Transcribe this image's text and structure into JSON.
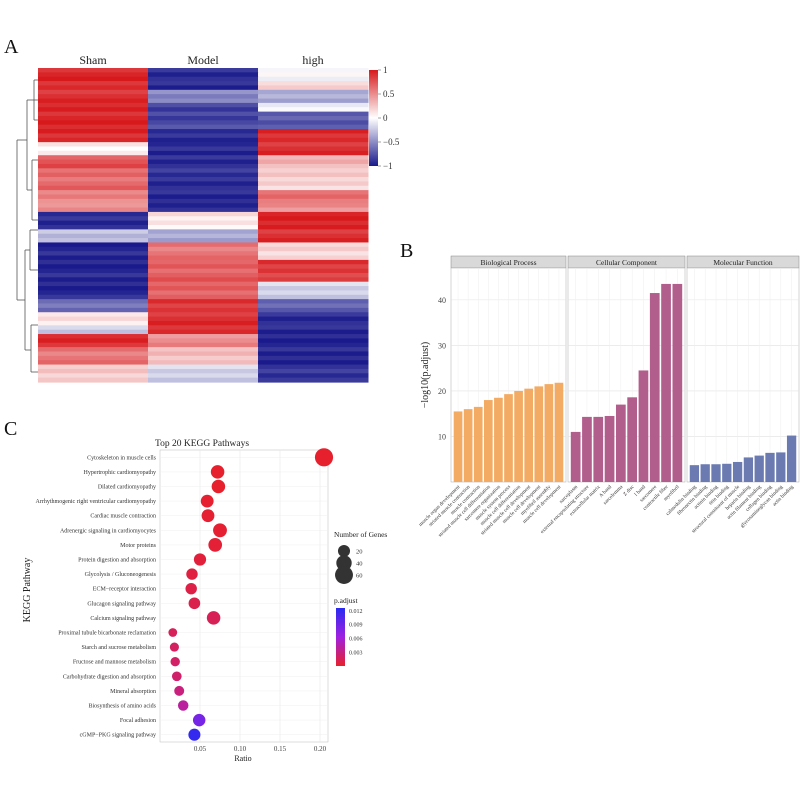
{
  "panels": {
    "a": "A",
    "b": "B",
    "c": "C"
  },
  "chart_data": [
    {
      "type": "heatmap",
      "panel": "A",
      "columns": [
        "Sham",
        "Model",
        "high"
      ],
      "colorbar": {
        "ticks": [
          1,
          0.5,
          0,
          -0.5,
          -1
        ],
        "labels": [
          "1",
          "0.5",
          "0",
          "−0.5",
          "−1"
        ],
        "colors": {
          "high": "#d7191c",
          "mid": "#ffffff",
          "low": "#1a1a8c"
        }
      },
      "row_blocks": [
        {
          "rows": 3,
          "values": [
            0.95,
            -0.9,
            0.0
          ]
        },
        {
          "rows": 2,
          "values": [
            0.9,
            -0.95,
            0.15
          ]
        },
        {
          "rows": 3,
          "values": [
            0.9,
            -0.5,
            -0.35
          ]
        },
        {
          "rows": 2,
          "values": [
            0.95,
            -0.85,
            -0.1
          ]
        },
        {
          "rows": 4,
          "values": [
            0.95,
            -0.8,
            -0.7
          ]
        },
        {
          "rows": 3,
          "values": [
            0.95,
            -0.9,
            0.9
          ]
        },
        {
          "rows": 3,
          "values": [
            0.05,
            -0.95,
            0.9
          ]
        },
        {
          "rows": 3,
          "values": [
            0.75,
            -0.9,
            0.35
          ]
        },
        {
          "rows": 5,
          "values": [
            0.65,
            -0.9,
            0.2
          ]
        },
        {
          "rows": 3,
          "values": [
            0.55,
            -0.95,
            0.6
          ]
        },
        {
          "rows": 2,
          "values": [
            0.45,
            -0.9,
            0.5
          ]
        },
        {
          "rows": 4,
          "values": [
            -0.9,
            0.1,
            0.95
          ]
        },
        {
          "rows": 3,
          "values": [
            -0.3,
            -0.4,
            0.9
          ]
        },
        {
          "rows": 4,
          "values": [
            -0.95,
            0.6,
            0.2
          ]
        },
        {
          "rows": 5,
          "values": [
            -0.95,
            0.7,
            0.85
          ]
        },
        {
          "rows": 4,
          "values": [
            -0.95,
            0.7,
            -0.2
          ]
        },
        {
          "rows": 3,
          "values": [
            -0.6,
            0.85,
            -0.7
          ]
        },
        {
          "rows": 3,
          "values": [
            0.1,
            0.9,
            -0.9
          ]
        },
        {
          "rows": 2,
          "values": [
            -0.2,
            0.9,
            -0.95
          ]
        },
        {
          "rows": 3,
          "values": [
            0.9,
            0.5,
            -0.95
          ]
        },
        {
          "rows": 4,
          "values": [
            0.6,
            0.3,
            -0.95
          ]
        },
        {
          "rows": 4,
          "values": [
            0.25,
            -0.2,
            -0.9
          ]
        }
      ]
    },
    {
      "type": "bar",
      "panel": "B",
      "ylabel": "−log10(p.adjust)",
      "ylim": [
        0,
        47
      ],
      "yticks": [
        10,
        20,
        30,
        40
      ],
      "facets": [
        {
          "name": "Biological Process",
          "color": "#f3ab64",
          "categories": [
            "muscle organ development",
            "striated muscle contraction",
            "muscle contraction",
            "striated muscle cell differentiation",
            "sarcomere organization",
            "muscle system process",
            "muscle cell differentiation",
            "striated muscle cell development",
            "muscle cell development",
            "myofibril assembly",
            "muscle cell development"
          ],
          "values": [
            15.5,
            16,
            16.5,
            18,
            18.5,
            19.3,
            20,
            20.5,
            21,
            21.5,
            21.8
          ]
        },
        {
          "name": "Cellular Component",
          "color": "#b25e8d",
          "categories": [
            "sarcoplasm",
            "external encapsulating structure",
            "extracellular matrix",
            "A band",
            "sarcolemma",
            "Z disc",
            "I band",
            "sarcomere",
            "contractile fiber",
            "myofibril"
          ],
          "values": [
            11,
            14.3,
            14.3,
            14.5,
            17,
            18.6,
            24.5,
            41.5,
            43.5,
            43.5
          ]
        },
        {
          "name": "Molecular Function",
          "color": "#6b7bb1",
          "categories": [
            "calmodulin binding",
            "fibronectin binding",
            "actinin binding",
            "titin binding",
            "structural constituent of muscle",
            "heparin binding",
            "actin filament binding",
            "collagen binding",
            "glycosaminoglycan binding",
            "actin binding"
          ],
          "values": [
            3.7,
            3.9,
            3.9,
            4.0,
            4.4,
            5.4,
            5.8,
            6.4,
            6.5,
            10.2
          ]
        }
      ]
    },
    {
      "type": "scatter",
      "panel": "C",
      "title": "Top 20 KEGG Pathways",
      "xlabel": "Ratio",
      "ylabel": "KEGG Pathway",
      "xlim": [
        0,
        0.21
      ],
      "xticks": [
        0.05,
        0.1,
        0.15,
        0.2
      ],
      "xtick_labels": [
        "0.05",
        "0.10",
        "0.15",
        "0.20"
      ],
      "pathways": [
        "Cytoskeleton in muscle cells",
        "Hypertrophic cardiomyopathy",
        "Dilated cardiomyopathy",
        "Arrhythmogenic right ventricular cardiomyopathy",
        "Cardiac muscle contraction",
        "Adrenergic signaling in cardiomyocytes",
        "Motor proteins",
        "Protein digestion and absorption",
        "Glycolysis / Gluconeogenesis",
        "ECM−receptor interaction",
        "Glucagon signaling pathway",
        "Calcium signaling pathway",
        "Proximal tubule bicarbonate reclamation",
        "Starch and sucrose metabolism",
        "Fructose and mannose metabolism",
        "Carbohydrate digestion and absorption",
        "Mineral absorption",
        "Biosynthesis of amino acids",
        "Focal adhesion",
        "cGMP−PKG signaling pathway"
      ],
      "ratio": [
        0.205,
        0.072,
        0.073,
        0.059,
        0.06,
        0.075,
        0.069,
        0.05,
        0.04,
        0.039,
        0.043,
        0.067,
        0.016,
        0.018,
        0.019,
        0.021,
        0.024,
        0.029,
        0.049,
        0.043
      ],
      "gene_count": [
        62,
        28,
        28,
        24,
        24,
        30,
        29,
        21,
        17,
        17,
        18,
        28,
        7,
        8,
        9,
        10,
        11,
        13,
        22,
        20
      ],
      "p_adjust": [
        0.0001,
        0.0001,
        0.0001,
        0.0002,
        0.0003,
        0.0003,
        0.0004,
        0.0006,
        0.0008,
        0.001,
        0.0012,
        0.0015,
        0.0016,
        0.0018,
        0.002,
        0.0022,
        0.0028,
        0.004,
        0.0085,
        0.012
      ],
      "size_legend": {
        "title": "Number of Genes",
        "values": [
          20,
          40,
          60
        ]
      },
      "color_legend": {
        "title": "p.adjust",
        "ticks": [
          0.012,
          0.009,
          0.006,
          0.003
        ],
        "labels": [
          "0.012",
          "0.009",
          "0.006",
          "0.003"
        ],
        "colors": {
          "low": "#e8202a",
          "high": "#2a2af0"
        }
      }
    }
  ]
}
